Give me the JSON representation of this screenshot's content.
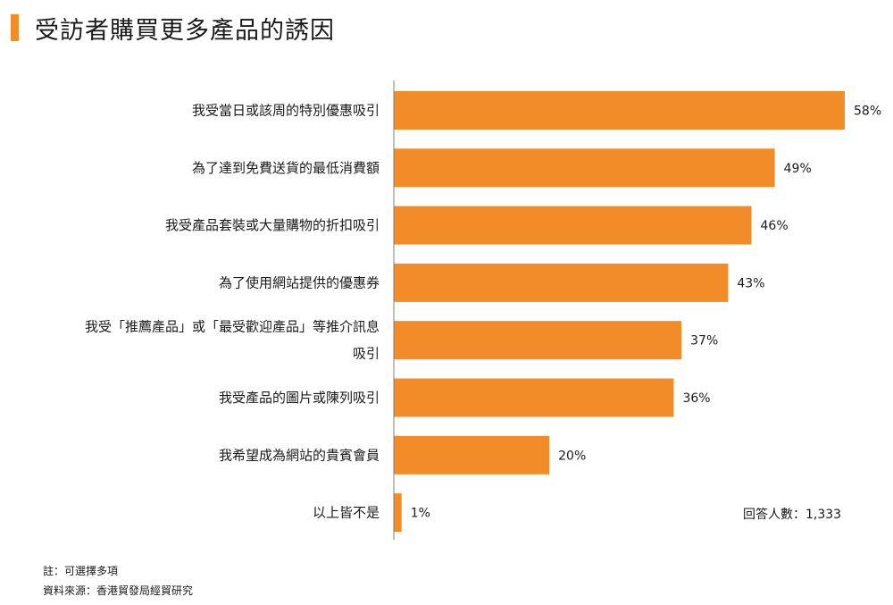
{
  "title": "受訪者購買更多產品的誘因",
  "respondents": "回答人數：1,333",
  "notes": [
    "註：可選擇多項",
    "資料來源：香港貿發局經貿研究"
  ],
  "colors": {
    "bar": "#f28c28",
    "accent": "#f28c28",
    "axis": "#7f7f7f"
  },
  "chart_data": {
    "type": "bar",
    "orientation": "horizontal",
    "categories": [
      [
        "我受當日或該周的特別優惠吸引"
      ],
      [
        "為了達到免費送貨的最低消費額"
      ],
      [
        "我受產品套裝或大量購物的折扣吸引"
      ],
      [
        "為了使用網站提供的優惠券"
      ],
      [
        "我受「推薦產品」或「最受歡迎產品」等推介訊息",
        "吸引"
      ],
      [
        "我受產品的圖片或陳列吸引"
      ],
      [
        "我希望成為網站的貴賓會員"
      ],
      [
        "以上皆不是"
      ]
    ],
    "values": [
      58,
      49,
      46,
      43,
      37,
      36,
      20,
      1
    ],
    "value_labels": [
      "58%",
      "49%",
      "46%",
      "43%",
      "37%",
      "36%",
      "20%",
      "1%"
    ],
    "unit": "%",
    "xlim": [
      0,
      58
    ],
    "grid": false,
    "legend": "none"
  }
}
